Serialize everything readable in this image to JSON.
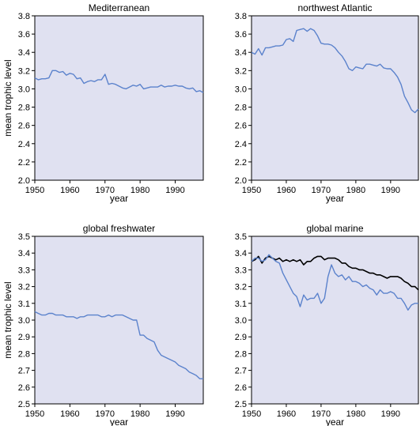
{
  "chart_data": [
    {
      "type": "line",
      "title": "Mediterranean",
      "xlabel": "year",
      "ylabel": "mean trophic level",
      "xlim": [
        1950,
        1998
      ],
      "ylim": [
        2.0,
        3.8
      ],
      "xticks": [
        "1950",
        "1960",
        "1970",
        "1980",
        "1990"
      ],
      "yticks": [
        "2.0",
        "2.2",
        "2.4",
        "2.6",
        "2.8",
        "3.0",
        "3.2",
        "3.4",
        "3.6",
        "3.8"
      ],
      "grid": false,
      "series": [
        {
          "color": "#5b82cc",
          "x": [
            1950,
            1951,
            1952,
            1953,
            1954,
            1955,
            1956,
            1957,
            1958,
            1959,
            1960,
            1961,
            1962,
            1963,
            1964,
            1965,
            1966,
            1967,
            1968,
            1969,
            1970,
            1971,
            1972,
            1973,
            1974,
            1975,
            1976,
            1977,
            1978,
            1979,
            1980,
            1981,
            1982,
            1983,
            1984,
            1985,
            1986,
            1987,
            1988,
            1989,
            1990,
            1991,
            1992,
            1993,
            1994,
            1995,
            1996,
            1997,
            1998
          ],
          "y": [
            3.12,
            3.1,
            3.11,
            3.11,
            3.12,
            3.2,
            3.2,
            3.18,
            3.19,
            3.15,
            3.17,
            3.16,
            3.11,
            3.12,
            3.06,
            3.08,
            3.09,
            3.08,
            3.1,
            3.1,
            3.16,
            3.05,
            3.06,
            3.05,
            3.03,
            3.01,
            3.0,
            3.02,
            3.04,
            3.03,
            3.05,
            3.0,
            3.01,
            3.02,
            3.02,
            3.02,
            3.04,
            3.02,
            3.03,
            3.03,
            3.04,
            3.03,
            3.03,
            3.01,
            3.0,
            3.01,
            2.97,
            2.98,
            2.96
          ]
        }
      ]
    },
    {
      "type": "line",
      "title": "northwest Atlantic",
      "xlabel": "year",
      "ylabel": "",
      "xlim": [
        1950,
        1998
      ],
      "ylim": [
        2.0,
        3.8
      ],
      "xticks": [
        "1950",
        "1960",
        "1970",
        "1980",
        "1990"
      ],
      "yticks": [
        "2.0",
        "2.2",
        "2.4",
        "2.6",
        "2.8",
        "3.0",
        "3.2",
        "3.4",
        "3.6",
        "3.8"
      ],
      "grid": false,
      "series": [
        {
          "color": "#5b82cc",
          "x": [
            1950,
            1951,
            1952,
            1953,
            1954,
            1955,
            1956,
            1957,
            1958,
            1959,
            1960,
            1961,
            1962,
            1963,
            1964,
            1965,
            1966,
            1967,
            1968,
            1969,
            1970,
            1971,
            1972,
            1973,
            1974,
            1975,
            1976,
            1977,
            1978,
            1979,
            1980,
            1981,
            1982,
            1983,
            1984,
            1985,
            1986,
            1987,
            1988,
            1989,
            1990,
            1991,
            1992,
            1993,
            1994,
            1995,
            1996,
            1997,
            1998
          ],
          "y": [
            3.4,
            3.38,
            3.44,
            3.37,
            3.45,
            3.45,
            3.46,
            3.47,
            3.47,
            3.48,
            3.54,
            3.55,
            3.52,
            3.64,
            3.65,
            3.66,
            3.63,
            3.66,
            3.64,
            3.58,
            3.5,
            3.49,
            3.49,
            3.48,
            3.45,
            3.4,
            3.36,
            3.3,
            3.22,
            3.2,
            3.24,
            3.23,
            3.22,
            3.27,
            3.27,
            3.26,
            3.25,
            3.27,
            3.23,
            3.22,
            3.22,
            3.18,
            3.13,
            3.05,
            2.92,
            2.85,
            2.77,
            2.74,
            2.78
          ]
        }
      ]
    },
    {
      "type": "line",
      "title": "global freshwater",
      "xlabel": "year",
      "ylabel": "mean trophic level",
      "xlim": [
        1950,
        1998
      ],
      "ylim": [
        2.5,
        3.5
      ],
      "xticks": [
        "1950",
        "1960",
        "1970",
        "1980",
        "1990"
      ],
      "yticks": [
        "2.5",
        "2.6",
        "2.7",
        "2.8",
        "2.9",
        "3.0",
        "3.1",
        "3.2",
        "3.3",
        "3.4",
        "3.5"
      ],
      "grid": false,
      "series": [
        {
          "color": "#5b82cc",
          "x": [
            1950,
            1951,
            1952,
            1953,
            1954,
            1955,
            1956,
            1957,
            1958,
            1959,
            1960,
            1961,
            1962,
            1963,
            1964,
            1965,
            1966,
            1967,
            1968,
            1969,
            1970,
            1971,
            1972,
            1973,
            1974,
            1975,
            1976,
            1977,
            1978,
            1979,
            1980,
            1981,
            1982,
            1983,
            1984,
            1985,
            1986,
            1987,
            1988,
            1989,
            1990,
            1991,
            1992,
            1993,
            1994,
            1995,
            1996,
            1997,
            1998
          ],
          "y": [
            3.05,
            3.04,
            3.03,
            3.03,
            3.04,
            3.04,
            3.03,
            3.03,
            3.03,
            3.02,
            3.02,
            3.02,
            3.01,
            3.02,
            3.02,
            3.03,
            3.03,
            3.03,
            3.03,
            3.02,
            3.02,
            3.03,
            3.02,
            3.03,
            3.03,
            3.03,
            3.02,
            3.01,
            3.0,
            3.0,
            2.91,
            2.91,
            2.89,
            2.88,
            2.87,
            2.82,
            2.79,
            2.78,
            2.77,
            2.76,
            2.75,
            2.73,
            2.72,
            2.71,
            2.69,
            2.68,
            2.67,
            2.65,
            2.65
          ]
        }
      ]
    },
    {
      "type": "line",
      "title": "global marine",
      "xlabel": "year",
      "ylabel": "",
      "xlim": [
        1950,
        1998
      ],
      "ylim": [
        2.5,
        3.5
      ],
      "xticks": [
        "1950",
        "1960",
        "1970",
        "1980",
        "1990"
      ],
      "yticks": [
        "2.5",
        "2.6",
        "2.7",
        "2.8",
        "2.9",
        "3.0",
        "3.1",
        "3.2",
        "3.3",
        "3.4",
        "3.5"
      ],
      "grid": false,
      "series": [
        {
          "color": "#000000",
          "x": [
            1950,
            1951,
            1952,
            1953,
            1954,
            1955,
            1956,
            1957,
            1958,
            1959,
            1960,
            1961,
            1962,
            1963,
            1964,
            1965,
            1966,
            1967,
            1968,
            1969,
            1970,
            1971,
            1972,
            1973,
            1974,
            1975,
            1976,
            1977,
            1978,
            1979,
            1980,
            1981,
            1982,
            1983,
            1984,
            1985,
            1986,
            1987,
            1988,
            1989,
            1990,
            1991,
            1992,
            1993,
            1994,
            1995,
            1996,
            1997,
            1998
          ],
          "y": [
            3.35,
            3.36,
            3.38,
            3.34,
            3.37,
            3.38,
            3.37,
            3.36,
            3.37,
            3.35,
            3.36,
            3.35,
            3.36,
            3.35,
            3.36,
            3.33,
            3.35,
            3.35,
            3.37,
            3.38,
            3.38,
            3.36,
            3.37,
            3.37,
            3.37,
            3.36,
            3.34,
            3.34,
            3.32,
            3.31,
            3.31,
            3.3,
            3.3,
            3.29,
            3.28,
            3.28,
            3.27,
            3.27,
            3.26,
            3.25,
            3.26,
            3.26,
            3.26,
            3.25,
            3.23,
            3.22,
            3.2,
            3.2,
            3.18
          ]
        },
        {
          "color": "#5b82cc",
          "x": [
            1950,
            1951,
            1952,
            1953,
            1954,
            1955,
            1956,
            1957,
            1958,
            1959,
            1960,
            1961,
            1962,
            1963,
            1964,
            1965,
            1966,
            1967,
            1968,
            1969,
            1970,
            1971,
            1972,
            1973,
            1974,
            1975,
            1976,
            1977,
            1978,
            1979,
            1980,
            1981,
            1982,
            1983,
            1984,
            1985,
            1986,
            1987,
            1988,
            1989,
            1990,
            1991,
            1992,
            1993,
            1994,
            1995,
            1996,
            1997,
            1998
          ],
          "y": [
            3.35,
            3.37,
            3.37,
            3.35,
            3.36,
            3.39,
            3.37,
            3.35,
            3.34,
            3.28,
            3.24,
            3.2,
            3.16,
            3.14,
            3.08,
            3.15,
            3.12,
            3.13,
            3.13,
            3.16,
            3.1,
            3.13,
            3.26,
            3.33,
            3.28,
            3.26,
            3.27,
            3.24,
            3.26,
            3.23,
            3.23,
            3.22,
            3.2,
            3.21,
            3.19,
            3.18,
            3.15,
            3.18,
            3.16,
            3.16,
            3.17,
            3.16,
            3.13,
            3.13,
            3.1,
            3.06,
            3.09,
            3.1,
            3.1
          ]
        }
      ]
    }
  ]
}
